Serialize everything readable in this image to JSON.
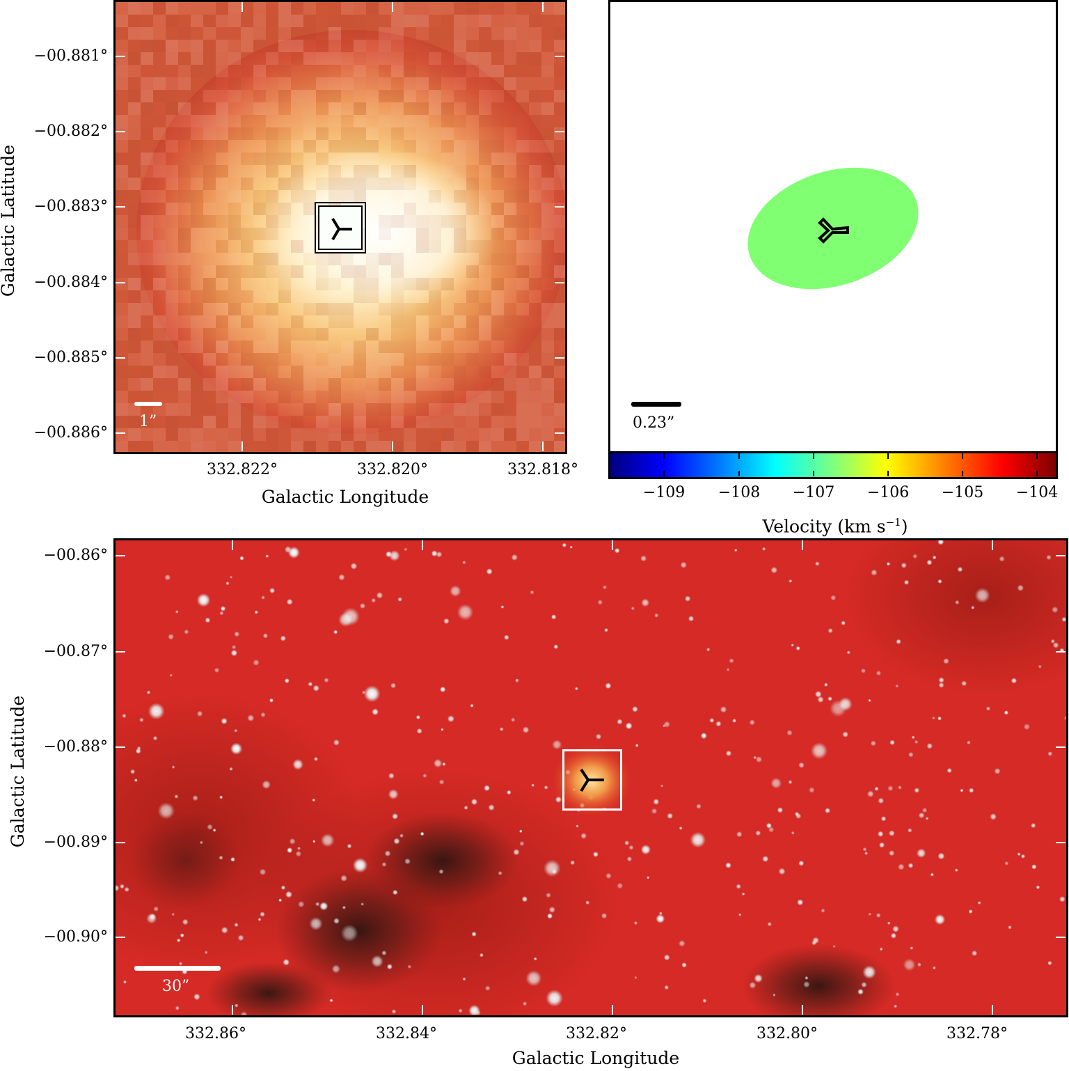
{
  "top_left": {
    "y_ticks": [
      "−00.881°",
      "−00.882°",
      "−00.883°",
      "−00.884°",
      "−00.885°",
      "−00.886°"
    ],
    "x_ticks": [
      "332.822°",
      "332.820°",
      "332.818°"
    ],
    "xlabel": "Galactic Longitude",
    "ylabel": "Galactic Latitude",
    "scale_label": "1”",
    "marker_icon": "three-prong-marker"
  },
  "top_right": {
    "scale_label": "0.23”",
    "ellipse_color": "#80ff73",
    "marker_icon": "three-prong-marker",
    "colorbar": {
      "ticks": [
        "−109",
        "−108",
        "−107",
        "−106",
        "−105",
        "−104"
      ],
      "label_main": "Velocity (km s",
      "label_sup": "−1",
      "label_end": ")",
      "range": [
        -109.8,
        -103.8
      ],
      "colormap": "jet"
    }
  },
  "bottom": {
    "y_ticks": [
      "−00.86°",
      "−00.87°",
      "−00.88°",
      "−00.89°",
      "−00.90°"
    ],
    "x_ticks": [
      "332.86°",
      "332.84°",
      "332.82°",
      "332.80°",
      "332.78°"
    ],
    "xlabel": "Galactic Longitude",
    "ylabel": "Galactic Latitude",
    "scale_label": "30”",
    "marker_icon": "three-prong-marker"
  }
}
